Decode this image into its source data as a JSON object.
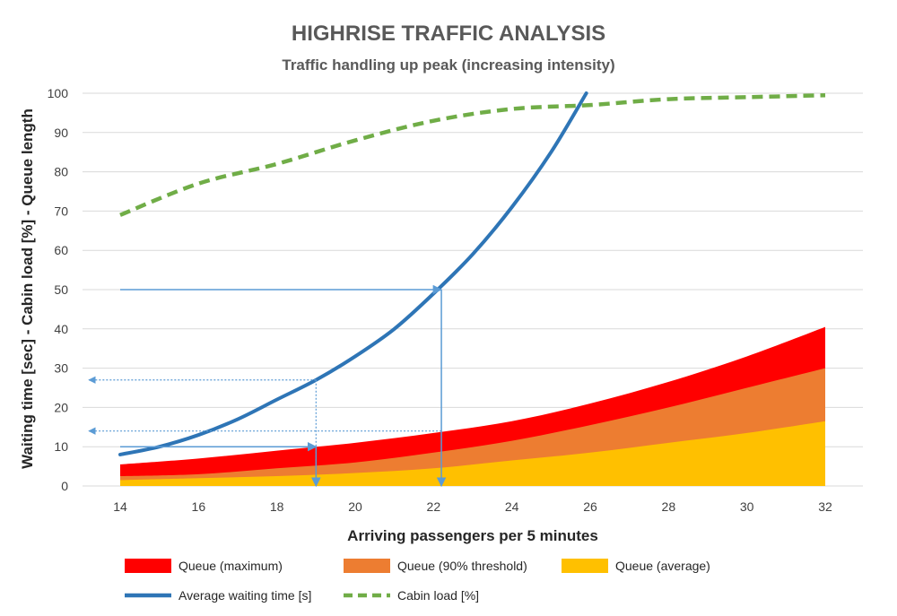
{
  "chart_data": {
    "type": "area",
    "title": "HIGHRISE TRAFFIC ANALYSIS",
    "subtitle": "Traffic handling up peak (increasing intensity)",
    "xlabel": "Arriving passengers per 5 minutes",
    "ylabel": "Waiting time  [sec] - Cabin load [%] - Queue length",
    "xlim": [
      14,
      32
    ],
    "ylim": [
      0,
      100
    ],
    "xticks": [
      14,
      16,
      18,
      20,
      22,
      24,
      26,
      28,
      30,
      32
    ],
    "yticks": [
      0,
      10,
      20,
      30,
      40,
      50,
      60,
      70,
      80,
      90,
      100
    ],
    "grid": "horizontal",
    "legend_position": "bottom",
    "x": [
      14,
      16,
      18,
      20,
      22,
      24,
      26,
      28,
      30,
      32
    ],
    "series": [
      {
        "name": "Queue (maximum)",
        "kind": "area",
        "color": "#FF0000",
        "values": [
          5.5,
          7,
          9,
          11,
          13.5,
          16.5,
          21,
          26.5,
          33,
          40.5
        ]
      },
      {
        "name": "Queue (90% threshold)",
        "kind": "area",
        "color": "#ED7D31",
        "values": [
          2.5,
          3,
          4.5,
          6,
          8.5,
          11.5,
          15.5,
          20,
          25,
          30
        ]
      },
      {
        "name": "Queue (average)",
        "kind": "area",
        "color": "#FFC000",
        "values": [
          1.5,
          2,
          2.5,
          3.3,
          4.5,
          6.5,
          8.5,
          11,
          13.5,
          16.5
        ]
      },
      {
        "name": "Average waiting time [s]",
        "kind": "line",
        "color": "#2E75B6",
        "x": [
          14,
          15,
          16,
          17,
          18,
          19,
          20,
          21,
          22,
          23,
          24,
          25,
          25.9
        ],
        "values": [
          8,
          10,
          13,
          17,
          22,
          27,
          33,
          40,
          49,
          59,
          71,
          85,
          100
        ]
      },
      {
        "name": "Cabin load [%]",
        "kind": "dashed-line",
        "color": "#70AD47",
        "values": [
          69,
          77,
          82,
          88,
          93,
          96,
          97,
          98.5,
          99,
          99.5
        ]
      }
    ],
    "annotations": [
      {
        "type": "arrow-solid",
        "from": [
          14,
          50
        ],
        "to": [
          22.2,
          50
        ]
      },
      {
        "type": "arrow-solid",
        "from": [
          22.2,
          50
        ],
        "to": [
          22.2,
          0
        ]
      },
      {
        "type": "arrow-solid",
        "from": [
          14,
          10
        ],
        "to": [
          19,
          10
        ]
      },
      {
        "type": "arrow-solid",
        "from": [
          19,
          10
        ],
        "to": [
          19,
          0
        ]
      },
      {
        "type": "arrow-dotted",
        "from": [
          19,
          27
        ],
        "to": [
          19,
          0
        ]
      },
      {
        "type": "arrow-dotted",
        "from": [
          19,
          27
        ],
        "to": [
          13.2,
          27
        ]
      },
      {
        "type": "arrow-dotted",
        "from": [
          22.2,
          14
        ],
        "to": [
          13.2,
          14
        ]
      }
    ]
  }
}
